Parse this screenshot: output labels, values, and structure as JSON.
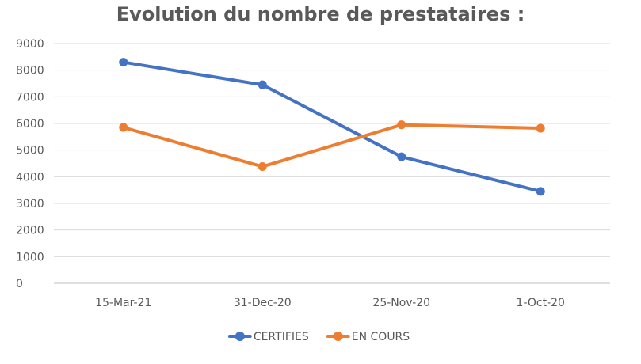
{
  "chart_data": {
    "type": "line",
    "title": "Evolution du nombre de prestataires :",
    "categories": [
      "15-Mar-21",
      "31-Dec-20",
      "25-Nov-20",
      "1-Oct-20"
    ],
    "series": [
      {
        "name": "CERTIFIES",
        "color": "#4472C4",
        "values": [
          8300,
          7450,
          4750,
          3450
        ]
      },
      {
        "name": "EN COURS",
        "color": "#ED7D31",
        "values": [
          5850,
          4380,
          5950,
          5820
        ]
      }
    ],
    "ylim": [
      0,
      9000
    ],
    "yticks": [
      0,
      1000,
      2000,
      3000,
      4000,
      5000,
      6000,
      7000,
      8000,
      9000
    ],
    "grid": true,
    "legend": "bottom",
    "gridColor": "#D9D9D9",
    "axisColor": "#BFBFBF"
  }
}
